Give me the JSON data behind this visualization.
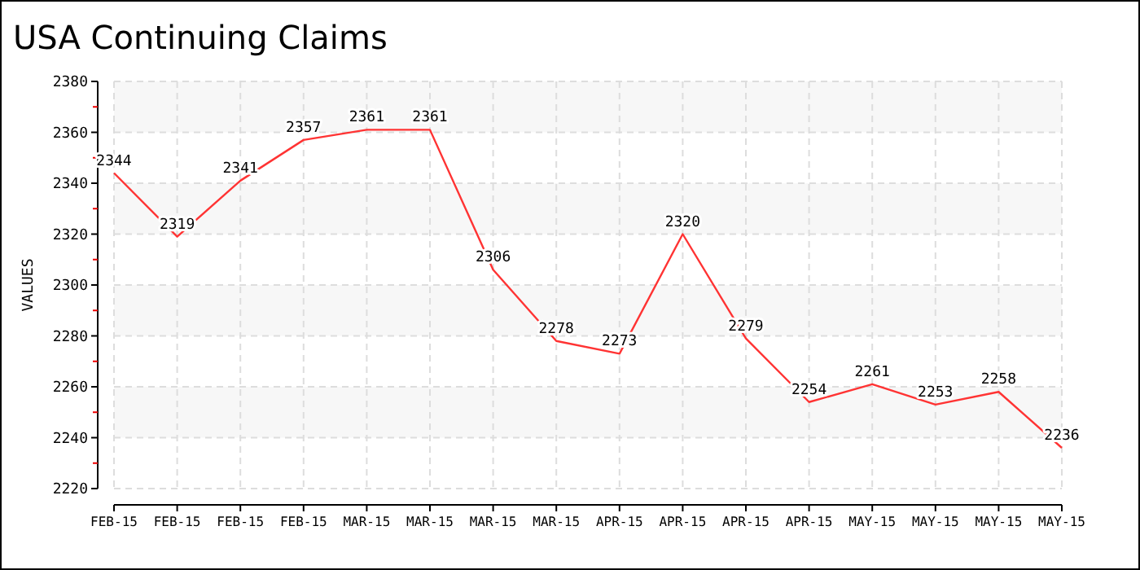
{
  "chart_data": {
    "type": "line",
    "title": "USA Continuing Claims",
    "ylabel": "VALUES",
    "categories": [
      "FEB-15",
      "FEB-15",
      "FEB-15",
      "FEB-15",
      "MAR-15",
      "MAR-15",
      "MAR-15",
      "MAR-15",
      "APR-15",
      "APR-15",
      "APR-15",
      "APR-15",
      "MAY-15",
      "MAY-15",
      "MAY-15",
      "MAY-15"
    ],
    "series": [
      {
        "color": "#ff3333",
        "values": [
          2344,
          2319,
          2341,
          2357,
          2361,
          2361,
          2306,
          2278,
          2273,
          2320,
          2279,
          2254,
          2261,
          2253,
          2258,
          2236
        ]
      }
    ],
    "ylim": [
      2220,
      2380
    ],
    "yticks": [
      2220,
      2240,
      2260,
      2280,
      2300,
      2320,
      2340,
      2360,
      2380
    ],
    "grid": true,
    "data_labels": true,
    "marker": "none",
    "line_style": "solid"
  }
}
